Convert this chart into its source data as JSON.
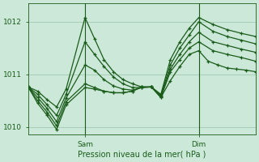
{
  "bg_color": "#cce8d8",
  "line_color": "#1a5c1a",
  "grid_color": "#99c4aa",
  "xlabel": "Pression niveau de la mer( hPa )",
  "ylim": [
    1009.85,
    1012.35
  ],
  "yticks": [
    1010,
    1011,
    1012
  ],
  "xlim": [
    0,
    96
  ],
  "sam_x": 24,
  "dim_x": 72,
  "series": [
    [
      0,
      1010.76,
      4,
      1010.68,
      8,
      1010.52,
      12,
      1010.38,
      16,
      1010.72,
      24,
      1012.08,
      28,
      1011.68,
      32,
      1011.28,
      36,
      1011.05,
      40,
      1010.9,
      44,
      1010.82,
      48,
      1010.76,
      52,
      1010.76,
      56,
      1010.56,
      60,
      1010.88,
      64,
      1011.15,
      68,
      1011.38,
      72,
      1011.45,
      76,
      1011.25,
      80,
      1011.18,
      84,
      1011.12,
      88,
      1011.1,
      92,
      1011.08,
      96,
      1011.05
    ],
    [
      0,
      1010.76,
      4,
      1010.62,
      8,
      1010.42,
      12,
      1010.22,
      16,
      1010.62,
      24,
      1011.62,
      28,
      1011.38,
      32,
      1011.15,
      36,
      1010.95,
      40,
      1010.82,
      44,
      1010.75,
      48,
      1010.75,
      52,
      1010.76,
      56,
      1010.56,
      60,
      1011.05,
      64,
      1011.28,
      68,
      1011.5,
      72,
      1011.62,
      78,
      1011.45,
      84,
      1011.38,
      90,
      1011.32,
      96,
      1011.25
    ],
    [
      0,
      1010.76,
      4,
      1010.56,
      8,
      1010.35,
      12,
      1010.1,
      16,
      1010.55,
      24,
      1011.18,
      28,
      1011.08,
      32,
      1010.9,
      36,
      1010.78,
      40,
      1010.72,
      44,
      1010.7,
      48,
      1010.75,
      52,
      1010.76,
      56,
      1010.58,
      60,
      1011.1,
      64,
      1011.38,
      68,
      1011.62,
      72,
      1011.8,
      78,
      1011.62,
      84,
      1011.55,
      90,
      1011.48,
      96,
      1011.42
    ],
    [
      0,
      1010.76,
      4,
      1010.5,
      8,
      1010.28,
      12,
      1010.02,
      16,
      1010.48,
      24,
      1010.82,
      28,
      1010.75,
      32,
      1010.68,
      36,
      1010.65,
      40,
      1010.65,
      44,
      1010.68,
      48,
      1010.76,
      52,
      1010.76,
      56,
      1010.6,
      60,
      1011.18,
      64,
      1011.5,
      68,
      1011.75,
      72,
      1012.0,
      78,
      1011.82,
      84,
      1011.72,
      90,
      1011.65,
      96,
      1011.58
    ],
    [
      0,
      1010.76,
      4,
      1010.45,
      8,
      1010.22,
      12,
      1009.95,
      16,
      1010.42,
      24,
      1010.75,
      28,
      1010.72,
      32,
      1010.68,
      36,
      1010.65,
      40,
      1010.65,
      44,
      1010.68,
      48,
      1010.76,
      52,
      1010.76,
      56,
      1010.62,
      60,
      1011.28,
      64,
      1011.62,
      68,
      1011.88,
      72,
      1012.08,
      78,
      1011.95,
      84,
      1011.85,
      90,
      1011.78,
      96,
      1011.72
    ]
  ]
}
